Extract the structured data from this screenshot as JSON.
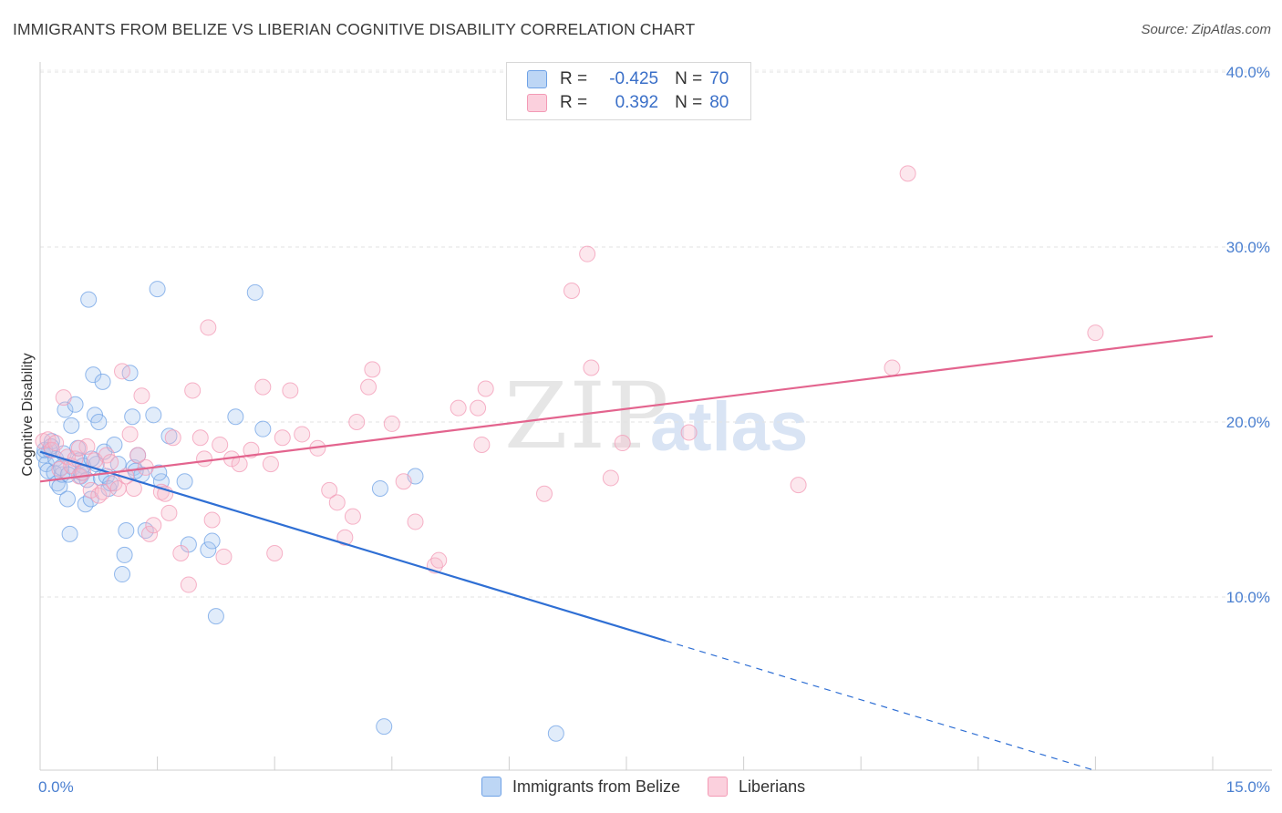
{
  "header": {
    "title": "IMMIGRANTS FROM BELIZE VS LIBERIAN COGNITIVE DISABILITY CORRELATION CHART",
    "source": "Source: ZipAtlas.com"
  },
  "watermark": {
    "zip": "ZIP",
    "atlas": "atlas"
  },
  "legend": {
    "rows": [
      {
        "r_label": "R =",
        "r_value": "-0.425",
        "n_label": "N =",
        "n_value": "70",
        "color": "#a9c8f0"
      },
      {
        "r_label": "R =",
        "r_value": "0.392",
        "n_label": "N =",
        "n_value": "80",
        "color": "#f7b9cb"
      }
    ]
  },
  "bottom_legend": {
    "items": [
      {
        "label": "Immigrants from Belize",
        "color": "#a9c8f0"
      },
      {
        "label": "Liberians",
        "color": "#f7b9cb"
      }
    ]
  },
  "chart_data": {
    "type": "scatter",
    "title": "IMMIGRANTS FROM BELIZE VS LIBERIAN COGNITIVE DISABILITY CORRELATION CHART",
    "xlabel": "",
    "ylabel": "Cognitive Disability",
    "xlim": [
      0,
      15
    ],
    "ylim": [
      0,
      40
    ],
    "x_tick_labels": [
      "0.0%",
      "15.0%"
    ],
    "y_ticks": [
      10,
      20,
      30,
      40
    ],
    "y_tick_labels": [
      "10.0%",
      "20.0%",
      "30.0%",
      "40.0%"
    ],
    "grid": true,
    "legend_position": "top-center",
    "series": [
      {
        "name": "Immigrants from Belize",
        "color": "#6fa2e6",
        "trend_color": "#2f6fd4",
        "trend": {
          "x0": 0.0,
          "y0": 18.3,
          "x1": 8.0,
          "y1": 7.5,
          "dash_to_x": 15.0
        },
        "points": [
          [
            0.05,
            18.1
          ],
          [
            0.08,
            17.6
          ],
          [
            0.1,
            17.2
          ],
          [
            0.12,
            18.4
          ],
          [
            0.15,
            18.9
          ],
          [
            0.18,
            17.1
          ],
          [
            0.2,
            17.9
          ],
          [
            0.22,
            16.5
          ],
          [
            0.25,
            16.3
          ],
          [
            0.28,
            17.0
          ],
          [
            0.3,
            18.2
          ],
          [
            0.32,
            20.7
          ],
          [
            0.35,
            15.6
          ],
          [
            0.38,
            13.6
          ],
          [
            0.4,
            19.8
          ],
          [
            0.42,
            17.4
          ],
          [
            0.45,
            21.0
          ],
          [
            0.48,
            18.5
          ],
          [
            0.5,
            17.8
          ],
          [
            0.52,
            16.9
          ],
          [
            0.55,
            17.5
          ],
          [
            0.58,
            15.3
          ],
          [
            0.6,
            16.7
          ],
          [
            0.62,
            27.0
          ],
          [
            0.65,
            15.6
          ],
          [
            0.68,
            22.7
          ],
          [
            0.7,
            20.4
          ],
          [
            0.72,
            17.6
          ],
          [
            0.75,
            20.0
          ],
          [
            0.78,
            16.8
          ],
          [
            0.8,
            22.3
          ],
          [
            0.82,
            18.3
          ],
          [
            0.85,
            16.9
          ],
          [
            0.88,
            16.2
          ],
          [
            0.9,
            16.5
          ],
          [
            0.95,
            18.7
          ],
          [
            1.0,
            17.6
          ],
          [
            1.05,
            11.3
          ],
          [
            1.1,
            13.8
          ],
          [
            1.15,
            22.8
          ],
          [
            1.18,
            20.3
          ],
          [
            1.2,
            17.4
          ],
          [
            1.25,
            18.1
          ],
          [
            1.3,
            17.0
          ],
          [
            1.35,
            13.8
          ],
          [
            1.45,
            20.4
          ],
          [
            1.5,
            27.6
          ],
          [
            1.55,
            16.6
          ],
          [
            1.65,
            19.2
          ],
          [
            1.85,
            16.6
          ],
          [
            1.9,
            13.0
          ],
          [
            2.15,
            12.7
          ],
          [
            2.2,
            13.2
          ],
          [
            2.25,
            8.9
          ],
          [
            2.5,
            20.3
          ],
          [
            2.75,
            27.4
          ],
          [
            2.85,
            19.6
          ],
          [
            4.4,
            2.6
          ],
          [
            4.8,
            16.9
          ],
          [
            6.6,
            2.2
          ],
          [
            0.06,
            18.4
          ],
          [
            0.14,
            18.6
          ],
          [
            0.27,
            17.4
          ],
          [
            0.36,
            17.0
          ],
          [
            0.53,
            17.1
          ],
          [
            0.66,
            17.9
          ],
          [
            1.08,
            12.4
          ],
          [
            1.52,
            17.1
          ],
          [
            4.35,
            16.2
          ],
          [
            1.22,
            17.2
          ]
        ]
      },
      {
        "name": "Liberians",
        "color": "#f39ab5",
        "trend_color": "#e3648e",
        "trend": {
          "x0": 0.0,
          "y0": 16.6,
          "x1": 15.0,
          "y1": 24.9
        },
        "points": [
          [
            0.04,
            18.9
          ],
          [
            0.1,
            19.0
          ],
          [
            0.15,
            18.4
          ],
          [
            0.2,
            18.8
          ],
          [
            0.25,
            17.3
          ],
          [
            0.3,
            21.4
          ],
          [
            0.35,
            18.0
          ],
          [
            0.4,
            17.5
          ],
          [
            0.45,
            17.9
          ],
          [
            0.5,
            16.9
          ],
          [
            0.55,
            17.1
          ],
          [
            0.6,
            18.6
          ],
          [
            0.65,
            16.1
          ],
          [
            0.7,
            17.8
          ],
          [
            0.75,
            15.8
          ],
          [
            0.8,
            16.0
          ],
          [
            0.85,
            18.1
          ],
          [
            0.9,
            17.7
          ],
          [
            0.95,
            16.5
          ],
          [
            1.0,
            16.2
          ],
          [
            1.05,
            22.9
          ],
          [
            1.1,
            16.9
          ],
          [
            1.15,
            19.3
          ],
          [
            1.2,
            16.2
          ],
          [
            1.25,
            18.1
          ],
          [
            1.3,
            21.5
          ],
          [
            1.35,
            17.4
          ],
          [
            1.4,
            13.6
          ],
          [
            1.45,
            14.1
          ],
          [
            1.55,
            16.0
          ],
          [
            1.6,
            15.9
          ],
          [
            1.65,
            14.8
          ],
          [
            1.7,
            19.1
          ],
          [
            1.8,
            12.5
          ],
          [
            1.9,
            10.7
          ],
          [
            1.95,
            21.8
          ],
          [
            2.05,
            19.1
          ],
          [
            2.1,
            17.9
          ],
          [
            2.15,
            25.4
          ],
          [
            2.2,
            14.4
          ],
          [
            2.3,
            18.7
          ],
          [
            2.35,
            12.3
          ],
          [
            2.45,
            17.9
          ],
          [
            2.55,
            17.6
          ],
          [
            2.7,
            18.4
          ],
          [
            2.85,
            22.0
          ],
          [
            2.95,
            17.6
          ],
          [
            3.0,
            12.5
          ],
          [
            3.1,
            19.1
          ],
          [
            3.2,
            21.8
          ],
          [
            3.35,
            19.3
          ],
          [
            3.55,
            18.5
          ],
          [
            3.7,
            16.1
          ],
          [
            3.8,
            15.4
          ],
          [
            3.9,
            13.4
          ],
          [
            4.0,
            14.6
          ],
          [
            4.05,
            20.0
          ],
          [
            4.2,
            22.0
          ],
          [
            4.25,
            23.0
          ],
          [
            4.5,
            19.9
          ],
          [
            4.65,
            16.6
          ],
          [
            4.8,
            14.3
          ],
          [
            5.05,
            11.8
          ],
          [
            5.1,
            12.1
          ],
          [
            5.35,
            20.8
          ],
          [
            5.6,
            20.8
          ],
          [
            5.65,
            18.7
          ],
          [
            5.7,
            21.9
          ],
          [
            6.45,
            15.9
          ],
          [
            6.8,
            27.5
          ],
          [
            7.0,
            29.6
          ],
          [
            7.05,
            23.1
          ],
          [
            7.3,
            16.8
          ],
          [
            7.45,
            18.8
          ],
          [
            8.3,
            19.4
          ],
          [
            9.7,
            16.4
          ],
          [
            10.9,
            23.1
          ],
          [
            11.1,
            34.2
          ],
          [
            13.5,
            25.1
          ],
          [
            0.5,
            18.5
          ]
        ]
      }
    ]
  }
}
